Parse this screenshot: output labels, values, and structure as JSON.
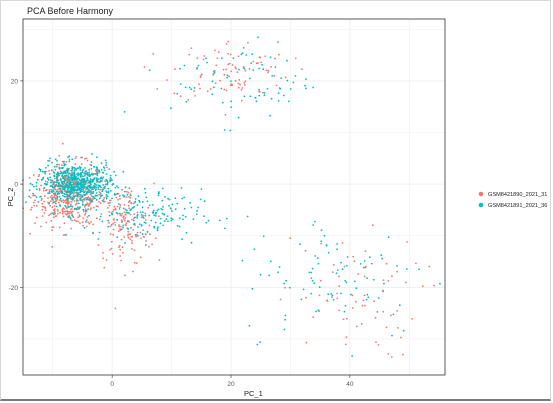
{
  "chart_data": {
    "type": "scatter",
    "title": "PCA Before Harmony",
    "xlabel": "PC_1",
    "ylabel": "PC_2",
    "xlim": [
      -15,
      56
    ],
    "ylim": [
      -37,
      32
    ],
    "xticks": [
      0,
      20,
      40
    ],
    "yticks": [
      -20,
      0,
      20
    ],
    "grid": true,
    "legend_position": "right",
    "series": [
      {
        "name": "GSM8421890_2021_31",
        "color": "#F8766D",
        "clusters": [
          {
            "center": [
              -7,
              -2
            ],
            "spread": [
              3,
              3
            ],
            "n": 500
          },
          {
            "center": [
              2,
              -8
            ],
            "spread": [
              2.5,
              4
            ],
            "n": 150
          },
          {
            "center": [
              20,
              22
            ],
            "spread": [
              5,
              3
            ],
            "n": 90
          },
          {
            "center": [
              40,
              -22
            ],
            "spread": [
              6,
              6
            ],
            "n": 70
          }
        ]
      },
      {
        "name": "GSM8421891_2021_36",
        "color": "#00BFC4",
        "clusters": [
          {
            "center": [
              -6,
              0
            ],
            "spread": [
              3,
              2
            ],
            "n": 650
          },
          {
            "center": [
              5,
              -6
            ],
            "spread": [
              5,
              2.5
            ],
            "n": 170
          },
          {
            "center": [
              22,
              20
            ],
            "spread": [
              6,
              4
            ],
            "n": 80
          },
          {
            "center": [
              38,
              -18
            ],
            "spread": [
              8,
              6
            ],
            "n": 90
          }
        ]
      }
    ]
  }
}
